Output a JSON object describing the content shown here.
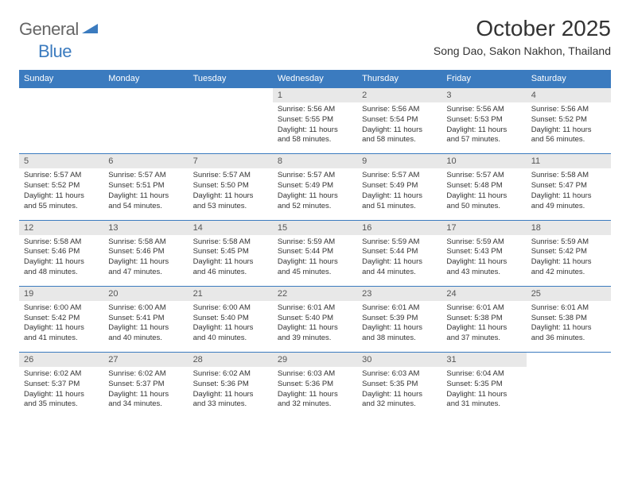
{
  "logo": {
    "word1": "General",
    "word2": "Blue",
    "color1": "#666666",
    "color2": "#3b7bbf"
  },
  "header": {
    "title": "October 2025",
    "location": "Song Dao, Sakon Nakhon, Thailand"
  },
  "style": {
    "header_bg": "#3b7bbf",
    "header_text": "#ffffff",
    "daynum_bg": "#e8e8e8",
    "row_border": "#3b7bbf",
    "body_text": "#333333",
    "font_family": "Arial",
    "title_fontsize": 28,
    "location_fontsize": 14,
    "header_fontsize": 11,
    "cell_fontsize": 9.5
  },
  "day_names": [
    "Sunday",
    "Monday",
    "Tuesday",
    "Wednesday",
    "Thursday",
    "Friday",
    "Saturday"
  ],
  "weeks": [
    [
      null,
      null,
      null,
      {
        "n": "1",
        "sunrise": "5:56 AM",
        "sunset": "5:55 PM",
        "daylight": "11 hours and 58 minutes."
      },
      {
        "n": "2",
        "sunrise": "5:56 AM",
        "sunset": "5:54 PM",
        "daylight": "11 hours and 58 minutes."
      },
      {
        "n": "3",
        "sunrise": "5:56 AM",
        "sunset": "5:53 PM",
        "daylight": "11 hours and 57 minutes."
      },
      {
        "n": "4",
        "sunrise": "5:56 AM",
        "sunset": "5:52 PM",
        "daylight": "11 hours and 56 minutes."
      }
    ],
    [
      {
        "n": "5",
        "sunrise": "5:57 AM",
        "sunset": "5:52 PM",
        "daylight": "11 hours and 55 minutes."
      },
      {
        "n": "6",
        "sunrise": "5:57 AM",
        "sunset": "5:51 PM",
        "daylight": "11 hours and 54 minutes."
      },
      {
        "n": "7",
        "sunrise": "5:57 AM",
        "sunset": "5:50 PM",
        "daylight": "11 hours and 53 minutes."
      },
      {
        "n": "8",
        "sunrise": "5:57 AM",
        "sunset": "5:49 PM",
        "daylight": "11 hours and 52 minutes."
      },
      {
        "n": "9",
        "sunrise": "5:57 AM",
        "sunset": "5:49 PM",
        "daylight": "11 hours and 51 minutes."
      },
      {
        "n": "10",
        "sunrise": "5:57 AM",
        "sunset": "5:48 PM",
        "daylight": "11 hours and 50 minutes."
      },
      {
        "n": "11",
        "sunrise": "5:58 AM",
        "sunset": "5:47 PM",
        "daylight": "11 hours and 49 minutes."
      }
    ],
    [
      {
        "n": "12",
        "sunrise": "5:58 AM",
        "sunset": "5:46 PM",
        "daylight": "11 hours and 48 minutes."
      },
      {
        "n": "13",
        "sunrise": "5:58 AM",
        "sunset": "5:46 PM",
        "daylight": "11 hours and 47 minutes."
      },
      {
        "n": "14",
        "sunrise": "5:58 AM",
        "sunset": "5:45 PM",
        "daylight": "11 hours and 46 minutes."
      },
      {
        "n": "15",
        "sunrise": "5:59 AM",
        "sunset": "5:44 PM",
        "daylight": "11 hours and 45 minutes."
      },
      {
        "n": "16",
        "sunrise": "5:59 AM",
        "sunset": "5:44 PM",
        "daylight": "11 hours and 44 minutes."
      },
      {
        "n": "17",
        "sunrise": "5:59 AM",
        "sunset": "5:43 PM",
        "daylight": "11 hours and 43 minutes."
      },
      {
        "n": "18",
        "sunrise": "5:59 AM",
        "sunset": "5:42 PM",
        "daylight": "11 hours and 42 minutes."
      }
    ],
    [
      {
        "n": "19",
        "sunrise": "6:00 AM",
        "sunset": "5:42 PM",
        "daylight": "11 hours and 41 minutes."
      },
      {
        "n": "20",
        "sunrise": "6:00 AM",
        "sunset": "5:41 PM",
        "daylight": "11 hours and 40 minutes."
      },
      {
        "n": "21",
        "sunrise": "6:00 AM",
        "sunset": "5:40 PM",
        "daylight": "11 hours and 40 minutes."
      },
      {
        "n": "22",
        "sunrise": "6:01 AM",
        "sunset": "5:40 PM",
        "daylight": "11 hours and 39 minutes."
      },
      {
        "n": "23",
        "sunrise": "6:01 AM",
        "sunset": "5:39 PM",
        "daylight": "11 hours and 38 minutes."
      },
      {
        "n": "24",
        "sunrise": "6:01 AM",
        "sunset": "5:38 PM",
        "daylight": "11 hours and 37 minutes."
      },
      {
        "n": "25",
        "sunrise": "6:01 AM",
        "sunset": "5:38 PM",
        "daylight": "11 hours and 36 minutes."
      }
    ],
    [
      {
        "n": "26",
        "sunrise": "6:02 AM",
        "sunset": "5:37 PM",
        "daylight": "11 hours and 35 minutes."
      },
      {
        "n": "27",
        "sunrise": "6:02 AM",
        "sunset": "5:37 PM",
        "daylight": "11 hours and 34 minutes."
      },
      {
        "n": "28",
        "sunrise": "6:02 AM",
        "sunset": "5:36 PM",
        "daylight": "11 hours and 33 minutes."
      },
      {
        "n": "29",
        "sunrise": "6:03 AM",
        "sunset": "5:36 PM",
        "daylight": "11 hours and 32 minutes."
      },
      {
        "n": "30",
        "sunrise": "6:03 AM",
        "sunset": "5:35 PM",
        "daylight": "11 hours and 32 minutes."
      },
      {
        "n": "31",
        "sunrise": "6:04 AM",
        "sunset": "5:35 PM",
        "daylight": "11 hours and 31 minutes."
      },
      null
    ]
  ],
  "labels": {
    "sunrise": "Sunrise:",
    "sunset": "Sunset:",
    "daylight": "Daylight:"
  }
}
